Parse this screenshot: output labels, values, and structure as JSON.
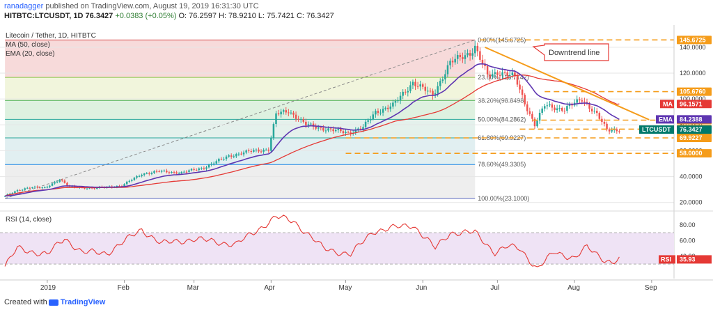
{
  "header": {
    "author": "ranadagger",
    "published": "published on TradingView.com, August 19, 2019 16:31:30 UTC",
    "symbol": "HITBTC:LTCUSDT, 1D",
    "last": "76.3427",
    "change": "+0.0383 (+0.05%)",
    "open": "O: 76.2597",
    "high": "H: 78.9210",
    "low": "L: 75.7421",
    "close": "C: 76.3427"
  },
  "legend": {
    "title": "Litecoin / Tether, 1D, HITBTC",
    "ma": "MA (50, close)",
    "ema": "EMA (20, close)",
    "rsi": "RSI (14, close)"
  },
  "annotation": "Downtrend line",
  "footer": {
    "prefix": "Created with",
    "brand": "TradingView"
  },
  "colors": {
    "up": "#26a69a",
    "down": "#ef5350",
    "ma": "#e53935",
    "ema": "#5e35b1",
    "trend": "#f59c1a",
    "rsi": "#e53935",
    "last": "#00796b",
    "grid": "#e6e6e6"
  },
  "chart_data": {
    "type": "candlestick",
    "title": "Litecoin / Tether, 1D, HITBTC",
    "symbol": "LTCUSDT",
    "ylim": [
      15,
      155
    ],
    "y_ticks": [
      20,
      40,
      60,
      80,
      100,
      120,
      140
    ],
    "y_tick_labels": [
      "20.0000",
      "40.0000",
      "60.0000",
      "80.0000",
      "100.0000",
      "120.0000",
      "140.0000"
    ],
    "months": [
      {
        "label": "2019",
        "x": "2019-01-01"
      },
      {
        "label": "Feb",
        "x": "2019-02-01"
      },
      {
        "label": "Mar",
        "x": "2019-03-01"
      },
      {
        "label": "Apr",
        "x": "2019-04-01"
      },
      {
        "label": "May",
        "x": "2019-05-01"
      },
      {
        "label": "Jun",
        "x": "2019-06-01"
      },
      {
        "label": "Jul",
        "x": "2019-07-01"
      },
      {
        "label": "Aug",
        "x": "2019-08-01"
      },
      {
        "label": "Sep",
        "x": "2019-09-01"
      }
    ],
    "x_range": [
      "2018-12-13",
      "2019-09-10"
    ],
    "fib_levels": [
      {
        "label": "0.00%(145.6725)",
        "value": 145.6725,
        "zone": "#f6d3d3"
      },
      {
        "label": "23.60%(116.7142)",
        "value": 116.7142,
        "zone": "#eef3d6"
      },
      {
        "label": "38.20%(98.8498)",
        "value": 98.8498,
        "zone": "#d8efda"
      },
      {
        "label": "50.00%(84.2862)",
        "value": 84.2862,
        "zone": "#dfefe9"
      },
      {
        "label": "61.80%(69.9227)",
        "value": 69.9227,
        "zone": "#dcecef"
      },
      {
        "label": "78.60%(49.3305)",
        "value": 49.3305,
        "zone": "#ebebeb"
      },
      {
        "label": "100.00%(23.1000)",
        "value": 23.1,
        "zone": null
      }
    ],
    "fib_start": {
      "x": "2018-12-15",
      "value": 23.1
    },
    "fib_end": {
      "x": "2019-06-22",
      "value": 145.6725
    },
    "horizontal_levels": [
      {
        "value": 145.6725,
        "label": "145.6725",
        "start": "2019-06-24"
      },
      {
        "value": 105.676,
        "label": "105.6760",
        "start": "2019-07-20"
      },
      {
        "value": 83.65,
        "label": "83.6500",
        "start": "2019-07-15"
      },
      {
        "value": 76.7143,
        "label": "76.7143",
        "start": "2019-07-10"
      },
      {
        "value": 69.9227,
        "label": "69.9227",
        "start": "2019-05-01"
      },
      {
        "value": 58.0,
        "label": "58.0000",
        "start": "2019-05-01"
      }
    ],
    "trendline": [
      {
        "x": "2019-06-26",
        "value": 140
      },
      {
        "x": "2019-08-31",
        "value": 84
      }
    ],
    "price_labels": [
      {
        "name": "MA",
        "value": 96.1571,
        "label": "96.1571",
        "color": "#e53935"
      },
      {
        "name": "EMA",
        "value": 84.2388,
        "label": "84.2388",
        "color": "#5e35b1"
      },
      {
        "name": "LTCUSDT",
        "value": 76.3427,
        "label": "76.3427",
        "color": "#00796b"
      }
    ],
    "close_anchors": [
      {
        "x": "2018-12-15",
        "close": 25
      },
      {
        "x": "2018-12-20",
        "close": 29
      },
      {
        "x": "2018-12-25",
        "close": 32
      },
      {
        "x": "2018-12-31",
        "close": 31
      },
      {
        "x": "2019-01-06",
        "close": 38
      },
      {
        "x": "2019-01-10",
        "close": 32
      },
      {
        "x": "2019-01-20",
        "close": 31
      },
      {
        "x": "2019-01-31",
        "close": 33
      },
      {
        "x": "2019-02-08",
        "close": 42
      },
      {
        "x": "2019-02-15",
        "close": 44
      },
      {
        "x": "2019-02-24",
        "close": 43
      },
      {
        "x": "2019-03-05",
        "close": 47
      },
      {
        "x": "2019-03-15",
        "close": 56
      },
      {
        "x": "2019-03-25",
        "close": 60
      },
      {
        "x": "2019-03-31",
        "close": 61
      },
      {
        "x": "2019-04-03",
        "close": 88
      },
      {
        "x": "2019-04-08",
        "close": 91
      },
      {
        "x": "2019-04-15",
        "close": 80
      },
      {
        "x": "2019-04-25",
        "close": 76
      },
      {
        "x": "2019-05-02",
        "close": 74
      },
      {
        "x": "2019-05-08",
        "close": 78
      },
      {
        "x": "2019-05-13",
        "close": 90
      },
      {
        "x": "2019-05-20",
        "close": 95
      },
      {
        "x": "2019-05-28",
        "close": 113
      },
      {
        "x": "2019-06-05",
        "close": 103
      },
      {
        "x": "2019-06-12",
        "close": 128
      },
      {
        "x": "2019-06-20",
        "close": 136
      },
      {
        "x": "2019-06-22",
        "close": 140
      },
      {
        "x": "2019-06-27",
        "close": 118
      },
      {
        "x": "2019-07-02",
        "close": 121
      },
      {
        "x": "2019-07-08",
        "close": 117
      },
      {
        "x": "2019-07-12",
        "close": 97
      },
      {
        "x": "2019-07-16",
        "close": 80
      },
      {
        "x": "2019-07-20",
        "close": 95
      },
      {
        "x": "2019-07-28",
        "close": 92
      },
      {
        "x": "2019-08-04",
        "close": 100
      },
      {
        "x": "2019-08-10",
        "close": 88
      },
      {
        "x": "2019-08-14",
        "close": 76
      },
      {
        "x": "2019-08-19",
        "close": 76.34
      }
    ],
    "rsi": {
      "label": "RSI",
      "value_label": "35.93",
      "ylim": [
        15,
        95
      ],
      "band": [
        30,
        70
      ],
      "ticks": [
        40,
        60,
        80
      ],
      "tick_labels": [
        "40.00",
        "60.00",
        "80.00"
      ],
      "anchors": [
        {
          "x": "2018-12-15",
          "v": 27
        },
        {
          "x": "2018-12-20",
          "v": 50
        },
        {
          "x": "2019-01-01",
          "v": 42
        },
        {
          "x": "2019-01-08",
          "v": 63
        },
        {
          "x": "2019-01-15",
          "v": 45
        },
        {
          "x": "2019-01-25",
          "v": 44
        },
        {
          "x": "2019-02-08",
          "v": 74
        },
        {
          "x": "2019-02-16",
          "v": 56
        },
        {
          "x": "2019-03-01",
          "v": 62
        },
        {
          "x": "2019-03-18",
          "v": 55
        },
        {
          "x": "2019-04-03",
          "v": 90
        },
        {
          "x": "2019-04-10",
          "v": 85
        },
        {
          "x": "2019-04-22",
          "v": 50
        },
        {
          "x": "2019-05-03",
          "v": 42
        },
        {
          "x": "2019-05-12",
          "v": 72
        },
        {
          "x": "2019-05-28",
          "v": 80
        },
        {
          "x": "2019-06-06",
          "v": 50
        },
        {
          "x": "2019-06-12",
          "v": 70
        },
        {
          "x": "2019-06-22",
          "v": 70
        },
        {
          "x": "2019-06-30",
          "v": 45
        },
        {
          "x": "2019-07-05",
          "v": 52
        },
        {
          "x": "2019-07-10",
          "v": 50
        },
        {
          "x": "2019-07-17",
          "v": 24
        },
        {
          "x": "2019-07-24",
          "v": 45
        },
        {
          "x": "2019-08-01",
          "v": 38
        },
        {
          "x": "2019-08-06",
          "v": 51
        },
        {
          "x": "2019-08-13",
          "v": 36
        },
        {
          "x": "2019-08-16",
          "v": 32
        },
        {
          "x": "2019-08-19",
          "v": 35.93
        }
      ]
    }
  }
}
